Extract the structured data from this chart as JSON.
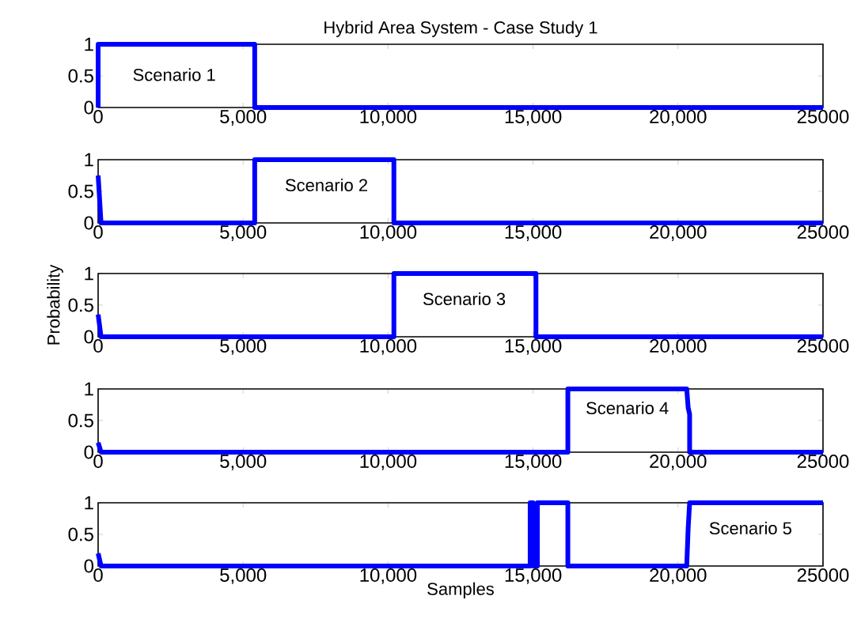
{
  "chart_data": [
    {
      "type": "line",
      "title": "Hybrid Area System - Case Study 1",
      "x": [
        0,
        0,
        5400,
        5400,
        25000
      ],
      "series": [
        {
          "color": "#0000ff",
          "values": [
            0,
            1,
            1,
            0,
            0
          ]
        }
      ],
      "annotations": [
        "Scenario 1"
      ],
      "xlim": [
        0,
        25000
      ],
      "ylim": [
        0,
        1
      ],
      "xticks": [
        0,
        {
          "value": 5000,
          "label": "5,000"
        },
        {
          "value": 10000,
          "label": "10,000"
        },
        {
          "value": 15000,
          "label": "15,000"
        },
        {
          "value": 20000,
          "label": "20,000"
        },
        25000
      ],
      "yticks": [
        0,
        0.5,
        1
      ]
    },
    {
      "type": "line",
      "x": [
        0,
        100,
        5400,
        5400,
        10200,
        10200,
        25000
      ],
      "series": [
        {
          "color": "#0000ff",
          "values": [
            0.75,
            0,
            0,
            1,
            1,
            0,
            0
          ]
        }
      ],
      "annotations": [
        "Scenario 2"
      ],
      "xlim": [
        0,
        25000
      ],
      "ylim": [
        0,
        1
      ],
      "xticks": [
        0,
        {
          "value": 5000,
          "label": "5,000"
        },
        {
          "value": 10000,
          "label": "10,000"
        },
        {
          "value": 15000,
          "label": "15,000"
        },
        {
          "value": 20000,
          "label": "20,000"
        },
        25000
      ],
      "yticks": [
        0,
        0.5,
        1
      ]
    },
    {
      "type": "line",
      "ylabel": "Probability",
      "x": [
        0,
        100,
        10200,
        10200,
        15100,
        15100,
        25000
      ],
      "series": [
        {
          "color": "#0000ff",
          "values": [
            0.35,
            0,
            0,
            1,
            1,
            0,
            0
          ]
        }
      ],
      "annotations": [
        "Scenario 3"
      ],
      "xlim": [
        0,
        25000
      ],
      "ylim": [
        0,
        1
      ],
      "xticks": [
        0,
        {
          "value": 5000,
          "label": "5,000"
        },
        {
          "value": 10000,
          "label": "10,000"
        },
        {
          "value": 15000,
          "label": "15,000"
        },
        {
          "value": 20000,
          "label": "20,000"
        },
        25000
      ],
      "yticks": [
        0,
        0.5,
        1
      ]
    },
    {
      "type": "line",
      "x": [
        0,
        100,
        16200,
        16200,
        20300,
        20350,
        20400,
        20400,
        25000
      ],
      "series": [
        {
          "color": "#0000ff",
          "values": [
            0.15,
            0,
            0,
            1,
            1,
            0.7,
            0.6,
            0,
            0
          ]
        }
      ],
      "annotations": [
        "Scenario 4"
      ],
      "xlim": [
        0,
        25000
      ],
      "ylim": [
        0,
        1
      ],
      "xticks": [
        0,
        {
          "value": 5000,
          "label": "5,000"
        },
        {
          "value": 10000,
          "label": "10,000"
        },
        {
          "value": 15000,
          "label": "15,000"
        },
        {
          "value": 20000,
          "label": "20,000"
        },
        25000
      ],
      "yticks": [
        0,
        0.5,
        1
      ]
    },
    {
      "type": "line",
      "xlabel": "Samples",
      "x": [
        0,
        100,
        14900,
        14900,
        15000,
        15000,
        15150,
        15150,
        16200,
        16200,
        20300,
        20350,
        20400,
        25000
      ],
      "series": [
        {
          "color": "#0000ff",
          "values": [
            0.2,
            0,
            0,
            1,
            1,
            0,
            0,
            1,
            1,
            0,
            0,
            0.6,
            1,
            1
          ]
        }
      ],
      "annotations": [
        "Scenario 5"
      ],
      "xlim": [
        0,
        25000
      ],
      "ylim": [
        0,
        1
      ],
      "xticks": [
        0,
        {
          "value": 5000,
          "label": "5,000"
        },
        {
          "value": 10000,
          "label": "10,000"
        },
        {
          "value": 15000,
          "label": "15,000"
        },
        {
          "value": 20000,
          "label": "20,000"
        },
        25000
      ],
      "yticks": [
        0,
        0.5,
        1
      ]
    }
  ]
}
